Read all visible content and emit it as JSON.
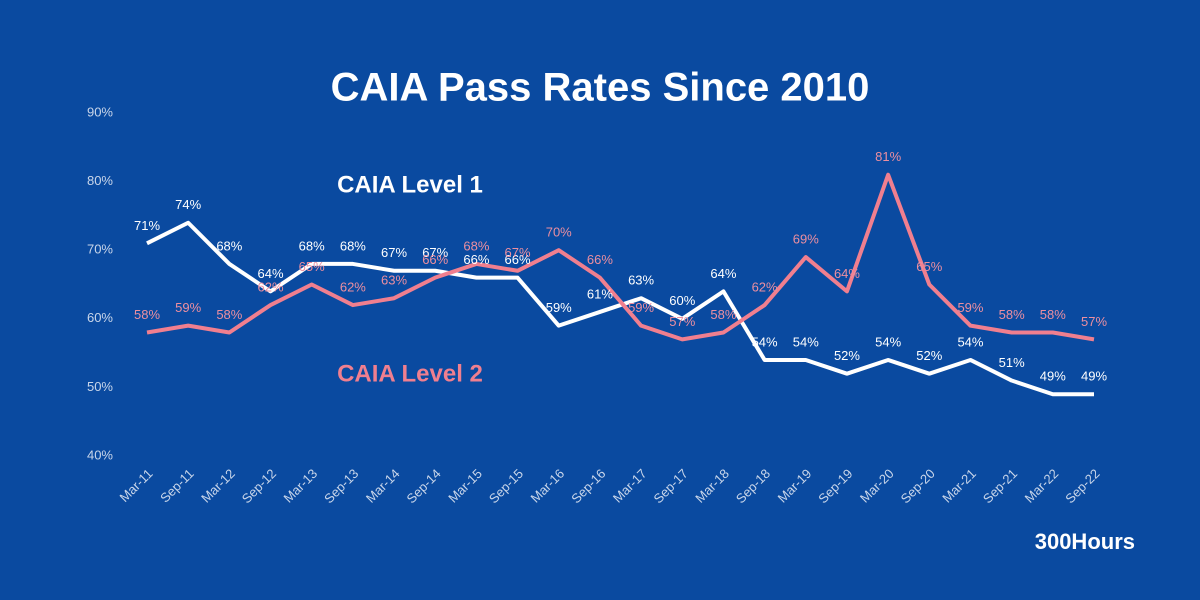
{
  "chart_data": {
    "type": "line",
    "title": "CAIA Pass Rates Since 2010",
    "categories": [
      "Mar-11",
      "Sep-11",
      "Mar-12",
      "Sep-12",
      "Mar-13",
      "Sep-13",
      "Mar-14",
      "Sep-14",
      "Mar-15",
      "Sep-15",
      "Mar-16",
      "Sep-16",
      "Mar-17",
      "Sep-17",
      "Mar-18",
      "Sep-18",
      "Mar-19",
      "Sep-19",
      "Mar-20",
      "Sep-20",
      "Mar-21",
      "Sep-21",
      "Mar-22",
      "Sep-22"
    ],
    "series": [
      {
        "name": "CAIA Level 1",
        "color": "#ffffff",
        "values": [
          71,
          74,
          68,
          64,
          68,
          68,
          67,
          67,
          66,
          66,
          59,
          61,
          63,
          60,
          64,
          54,
          54,
          52,
          54,
          52,
          54,
          51,
          49,
          49
        ],
        "value_labels": [
          "71%",
          "74%",
          "68%",
          "64%",
          "68%",
          "68%",
          "67%",
          "67%",
          "66%",
          "66%",
          "59%",
          "61%",
          "63%",
          "60%",
          "64%",
          "54%",
          "54%",
          "52%",
          "54%",
          "52%",
          "54%",
          "51%",
          "49%",
          "49%"
        ]
      },
      {
        "name": "CAIA Level 2",
        "color": "#f07f8f",
        "values": [
          58,
          59,
          58,
          62,
          65,
          62,
          63,
          66,
          68,
          67,
          70,
          66,
          59,
          57,
          58,
          62,
          69,
          64,
          81,
          65,
          59,
          58,
          58,
          57
        ],
        "value_labels": [
          "58%",
          "59%",
          "58%",
          "62%",
          "65%",
          "62%",
          "63%",
          "66%",
          "68%",
          "67%",
          "70%",
          "66%",
          "59%",
          "57%",
          "58%",
          "62%",
          "69%",
          "64%",
          "81%",
          "65%",
          "59%",
          "58%",
          "58%",
          "57%"
        ]
      }
    ],
    "ylim": [
      40,
      90
    ],
    "yticks": [
      {
        "value": 40,
        "label": "40%"
      },
      {
        "value": 50,
        "label": "50%"
      },
      {
        "value": 60,
        "label": "60%"
      },
      {
        "value": 70,
        "label": "70%"
      },
      {
        "value": 80,
        "label": "80%"
      },
      {
        "value": 90,
        "label": "90%"
      }
    ],
    "watermark": "300Hours"
  }
}
